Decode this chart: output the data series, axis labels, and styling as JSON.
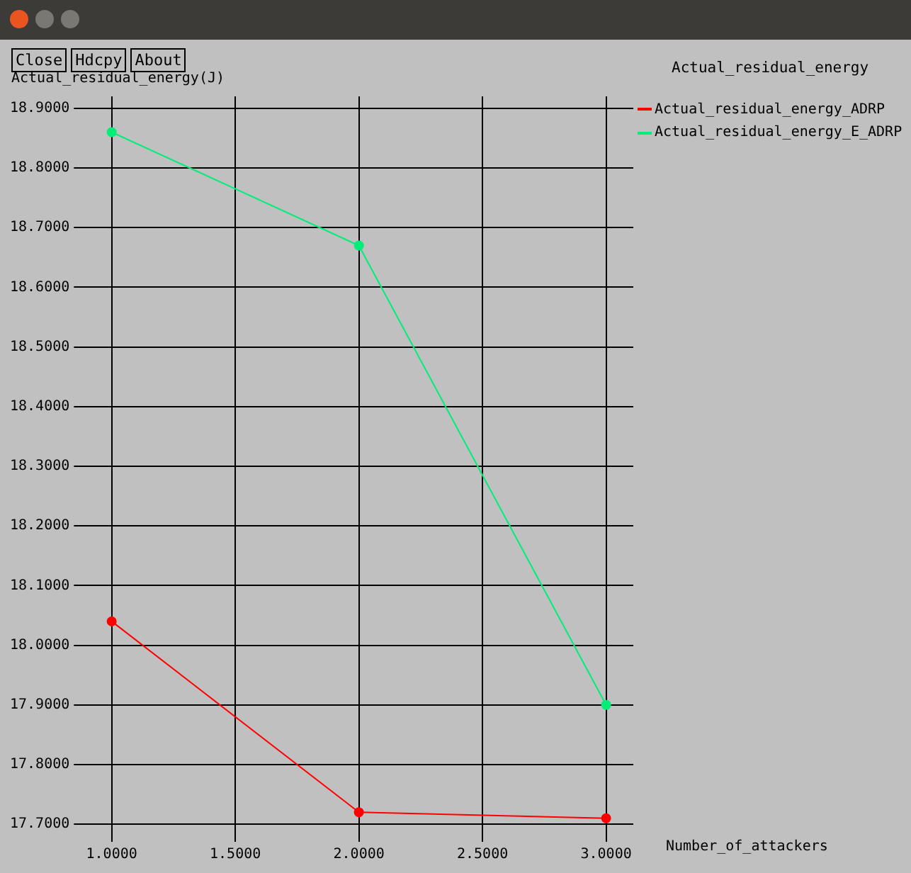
{
  "chart_data": {
    "type": "line",
    "title": "Actual_residual_energy",
    "xlabel": "Number_of_attackers",
    "ylabel": "Actual_residual_energy(J)",
    "annotations": [
      "Close",
      "Hdcpy",
      "About"
    ],
    "x": [
      1,
      2,
      3
    ],
    "series": [
      {
        "name": "Actual_residual_energy_ADRP",
        "color": "#ff0000",
        "values": [
          18.04,
          17.72,
          17.71
        ]
      },
      {
        "name": "Actual_residual_energy_E_ADRP",
        "color": "#00ee77",
        "values": [
          18.86,
          18.67,
          17.9
        ]
      }
    ],
    "xlim": [
      0.87,
      3.11
    ],
    "ylim": [
      17.68,
      18.92
    ],
    "xticks": [
      {
        "value": 1,
        "label": "1.0000"
      },
      {
        "value": 1.5,
        "label": "1.5000"
      },
      {
        "value": 2,
        "label": "2.0000"
      },
      {
        "value": 2.5,
        "label": "2.5000"
      },
      {
        "value": 3,
        "label": "3.0000"
      }
    ],
    "yticks": [
      {
        "value": 17.7,
        "label": "17.7000"
      },
      {
        "value": 17.8,
        "label": "17.8000"
      },
      {
        "value": 17.9,
        "label": "17.9000"
      },
      {
        "value": 18,
        "label": "18.0000"
      },
      {
        "value": 18.1,
        "label": "18.1000"
      },
      {
        "value": 18.2,
        "label": "18.2000"
      },
      {
        "value": 18.3,
        "label": "18.3000"
      },
      {
        "value": 18.4,
        "label": "18.4000"
      },
      {
        "value": 18.5,
        "label": "18.5000"
      },
      {
        "value": 18.6,
        "label": "18.6000"
      },
      {
        "value": 18.7,
        "label": "18.7000"
      },
      {
        "value": 18.8,
        "label": "18.8000"
      },
      {
        "value": 18.9,
        "label": "18.9000"
      }
    ],
    "grid": true,
    "legend": "top right",
    "marker": "circle",
    "line_style": "solid"
  }
}
